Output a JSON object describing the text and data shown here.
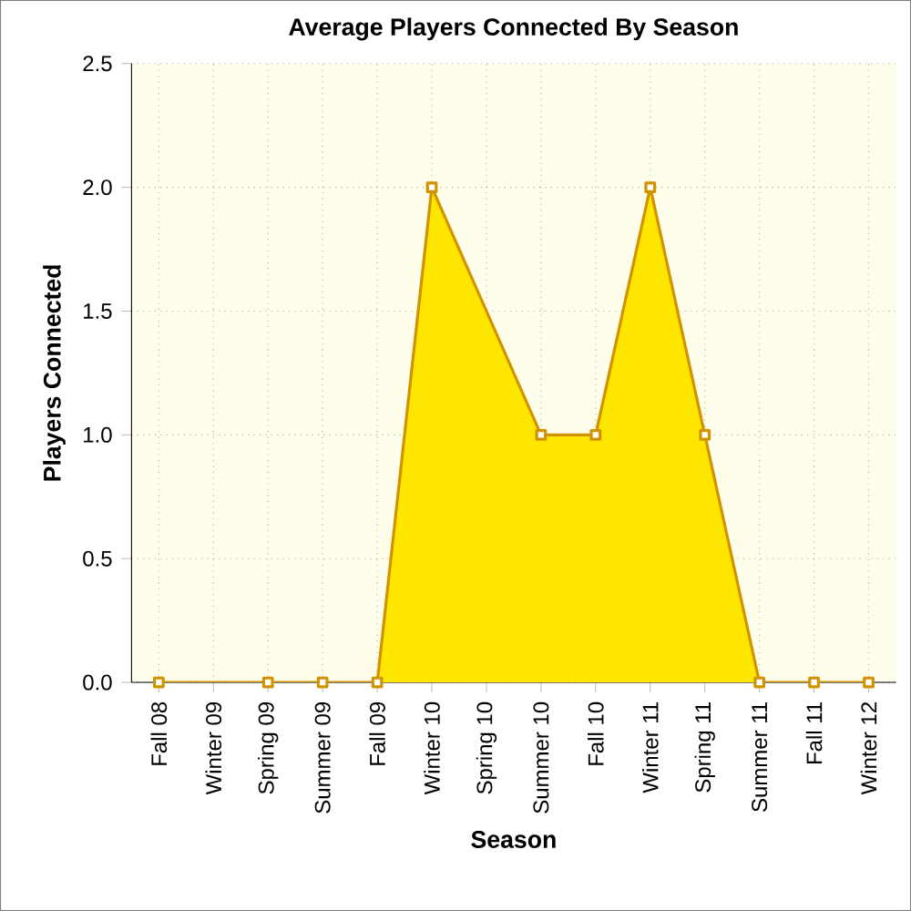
{
  "chart_data": {
    "type": "area",
    "title": "Average Players Connected By Season",
    "xlabel": "Season",
    "ylabel": "Players Connected",
    "categories": [
      "Fall 08",
      "Winter 09",
      "Spring 09",
      "Summer 09",
      "Fall 09",
      "Winter 10",
      "Spring 10",
      "Summer 10",
      "Fall 10",
      "Winter 11",
      "Spring 11",
      "Summer 11",
      "Fall 11",
      "Winter 12"
    ],
    "series": [
      {
        "color": "#ffe600",
        "values": [
          0,
          null,
          0,
          0,
          0,
          2,
          null,
          1,
          1,
          2,
          1,
          0,
          0,
          0
        ]
      }
    ],
    "ylim": [
      0,
      2.5
    ],
    "yticks": [
      {
        "value": 0,
        "label": "0.0"
      },
      {
        "value": 0.5,
        "label": "0.5"
      },
      {
        "value": 1,
        "label": "1.0"
      },
      {
        "value": 1.5,
        "label": "1.5"
      },
      {
        "value": 2,
        "label": "2.0"
      },
      {
        "value": 2.5,
        "label": "2.5"
      }
    ],
    "grid": true,
    "marker": "square",
    "line_style": "solid"
  }
}
